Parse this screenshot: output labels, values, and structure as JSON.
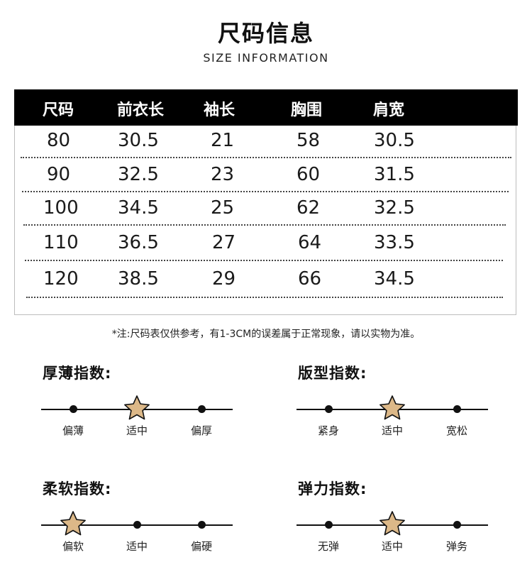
{
  "header": {
    "title": "尺码信息",
    "subtitle": "SIZE INFORMATION"
  },
  "table": {
    "headers": [
      "尺码",
      "前衣长",
      "袖长",
      "胸围",
      "肩宽"
    ],
    "rows": [
      [
        "80",
        "30.5",
        "21",
        "58",
        "30.5"
      ],
      [
        "90",
        "32.5",
        "23",
        "60",
        "31.5"
      ],
      [
        "100",
        "34.5",
        "25",
        "62",
        "32.5"
      ],
      [
        "110",
        "36.5",
        "27",
        "64",
        "33.5"
      ],
      [
        "120",
        "38.5",
        "29",
        "66",
        "34.5"
      ]
    ]
  },
  "note": "*注:尺码表仅供参考，有1-3CM的误差属于正常现象，请以实物为准。",
  "indices": [
    {
      "title": "厚薄指数:",
      "labels": [
        "偏薄",
        "适中",
        "偏厚"
      ],
      "selected_index": 1
    },
    {
      "title": "版型指数:",
      "labels": [
        "紧身",
        "适中",
        "宽松"
      ],
      "selected_index": 1
    },
    {
      "title": "柔软指数:",
      "labels": [
        "偏软",
        "适中",
        "偏硬"
      ],
      "selected_index": 0
    },
    {
      "title": "弹力指数:",
      "labels": [
        "无弹",
        "适中",
        "弹务"
      ],
      "selected_index": 1
    }
  ],
  "colors": {
    "header_bg": "#000000",
    "star_fill": "#dcb888",
    "star_stroke": "#111111"
  }
}
